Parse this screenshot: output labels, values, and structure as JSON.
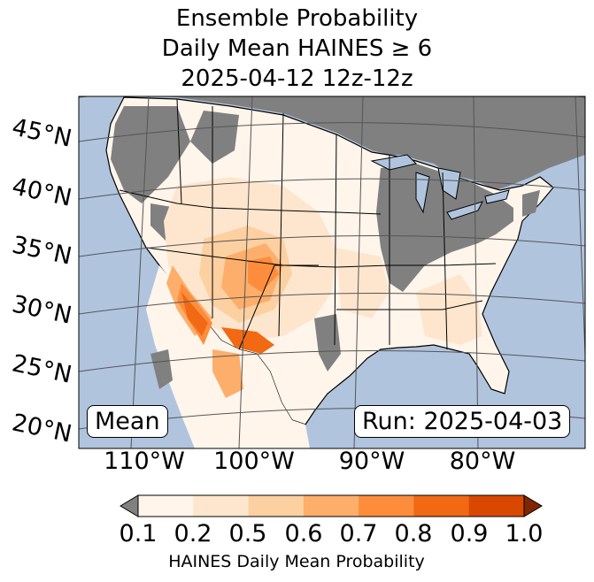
{
  "title": {
    "line1": "Ensemble Probability",
    "line2": "Daily Mean HAINES ≥ 6",
    "line3": "2025-04-12 12z-12z"
  },
  "map": {
    "latitude_labels": [
      "45°N",
      "40°N",
      "35°N",
      "30°N",
      "25°N",
      "20°N"
    ],
    "longitude_labels": [
      "110°W",
      "100°W",
      "90°W",
      "80°W"
    ],
    "mean_label": "Mean",
    "run_label": "Run: 2025-04-03",
    "colors": {
      "ocean": "#b0c4de",
      "land_no_data": "#808080",
      "state_borders": "#000000",
      "graticule": "#555555"
    }
  },
  "colorbar": {
    "ticks": [
      "0.1",
      "0.2",
      "0.5",
      "0.6",
      "0.7",
      "0.8",
      "0.9",
      "1.0"
    ],
    "colors": [
      "#fff5eb",
      "#fee6ce",
      "#fdd0a2",
      "#fdae6b",
      "#fd8d3c",
      "#f16913",
      "#d94801",
      "#a63603"
    ],
    "under_color": "#808080",
    "over_color": "#7f2704",
    "title": "HAINES Daily Mean Probability"
  }
}
